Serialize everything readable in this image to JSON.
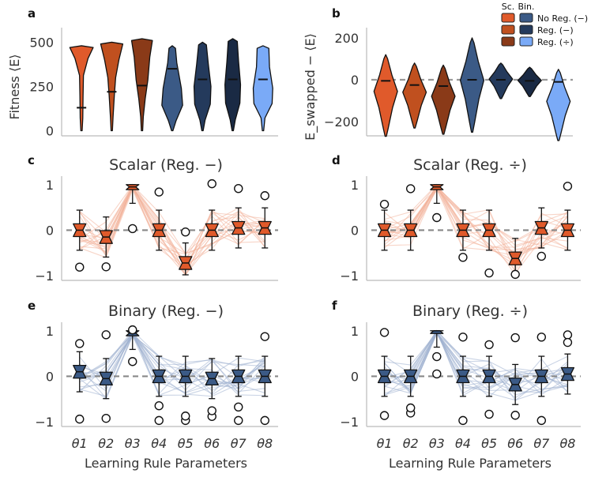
{
  "panel_labels": [
    "a",
    "b",
    "c",
    "d",
    "e",
    "f"
  ],
  "legend": {
    "headers": [
      "Sc.",
      "Bin."
    ],
    "rows": [
      {
        "label": "No Reg. (−)",
        "scalar_color": "#e05a2b",
        "binary_color": "#3b5a86"
      },
      {
        "label": "Reg. (−)",
        "scalar_color": "#c0501f",
        "binary_color": "#243a5c"
      },
      {
        "label": "Reg. (÷)",
        "scalar_color": "#8a3a18",
        "binary_color": "#7aaaf7"
      }
    ]
  },
  "colors": {
    "scalar": "#e05a2b",
    "binary": "#3b5a86",
    "violins": [
      "#e05a2b",
      "#c0501f",
      "#8a3a18",
      "#3b5a86",
      "#243a5c",
      "#1a2a44",
      "#7aaaf7"
    ]
  },
  "chart_data": [
    {
      "id": "a",
      "type": "violin",
      "ylabel": "Fitness ⟨E⟩",
      "ylim": [
        -20,
        560
      ],
      "yticks": [
        0,
        250,
        500
      ],
      "medians": [
        130,
        220,
        255,
        350,
        290,
        290,
        290
      ]
    },
    {
      "id": "b",
      "type": "violin",
      "ylabel": "E_swapped − ⟨E⟩",
      "ylim": [
        -260,
        230
      ],
      "yticks": [
        -200,
        0,
        200
      ],
      "reference_line": 0,
      "medians": [
        -5,
        -25,
        -30,
        0,
        0,
        -5,
        -10
      ]
    },
    {
      "id": "c",
      "type": "box",
      "title": "Scalar (Reg. −)",
      "categories": [
        "θ1",
        "θ2",
        "θ3",
        "θ4",
        "θ5",
        "θ6",
        "θ7",
        "θ8"
      ],
      "ylim": [
        -1.05,
        1.1
      ],
      "yticks": [
        -1,
        0,
        1
      ],
      "reference_line": 0,
      "medians": [
        0.0,
        -0.15,
        0.95,
        0.0,
        -0.72,
        0.0,
        0.05,
        0.05
      ]
    },
    {
      "id": "d",
      "type": "box",
      "title": "Scalar (Reg. ÷)",
      "categories": [
        "θ1",
        "θ2",
        "θ3",
        "θ4",
        "θ5",
        "θ6",
        "θ7",
        "θ8"
      ],
      "ylim": [
        -1.05,
        1.1
      ],
      "yticks": [
        -1,
        0,
        1
      ],
      "reference_line": 0,
      "medians": [
        0.0,
        0.0,
        0.95,
        0.0,
        0.0,
        -0.62,
        0.05,
        0.0
      ]
    },
    {
      "id": "e",
      "type": "box",
      "title": "Binary (Reg. −)",
      "categories": [
        "θ1",
        "θ2",
        "θ3",
        "θ4",
        "θ5",
        "θ6",
        "θ7",
        "θ8"
      ],
      "ylim": [
        -1.05,
        1.1
      ],
      "yticks": [
        -1,
        0,
        1
      ],
      "reference_line": 0,
      "medians": [
        0.1,
        -0.05,
        0.95,
        0.0,
        0.0,
        -0.05,
        0.0,
        0.0
      ]
    },
    {
      "id": "f",
      "type": "box",
      "title": "Binary (Reg. ÷)",
      "categories": [
        "θ1",
        "θ2",
        "θ3",
        "θ4",
        "θ5",
        "θ6",
        "θ7",
        "θ8"
      ],
      "ylim": [
        -1.05,
        1.1
      ],
      "yticks": [
        -1,
        0,
        1
      ],
      "reference_line": 0,
      "medians": [
        0.0,
        0.0,
        1.0,
        0.0,
        0.0,
        -0.18,
        0.0,
        0.05
      ]
    }
  ],
  "xlabel": "Learning Rule Parameters"
}
